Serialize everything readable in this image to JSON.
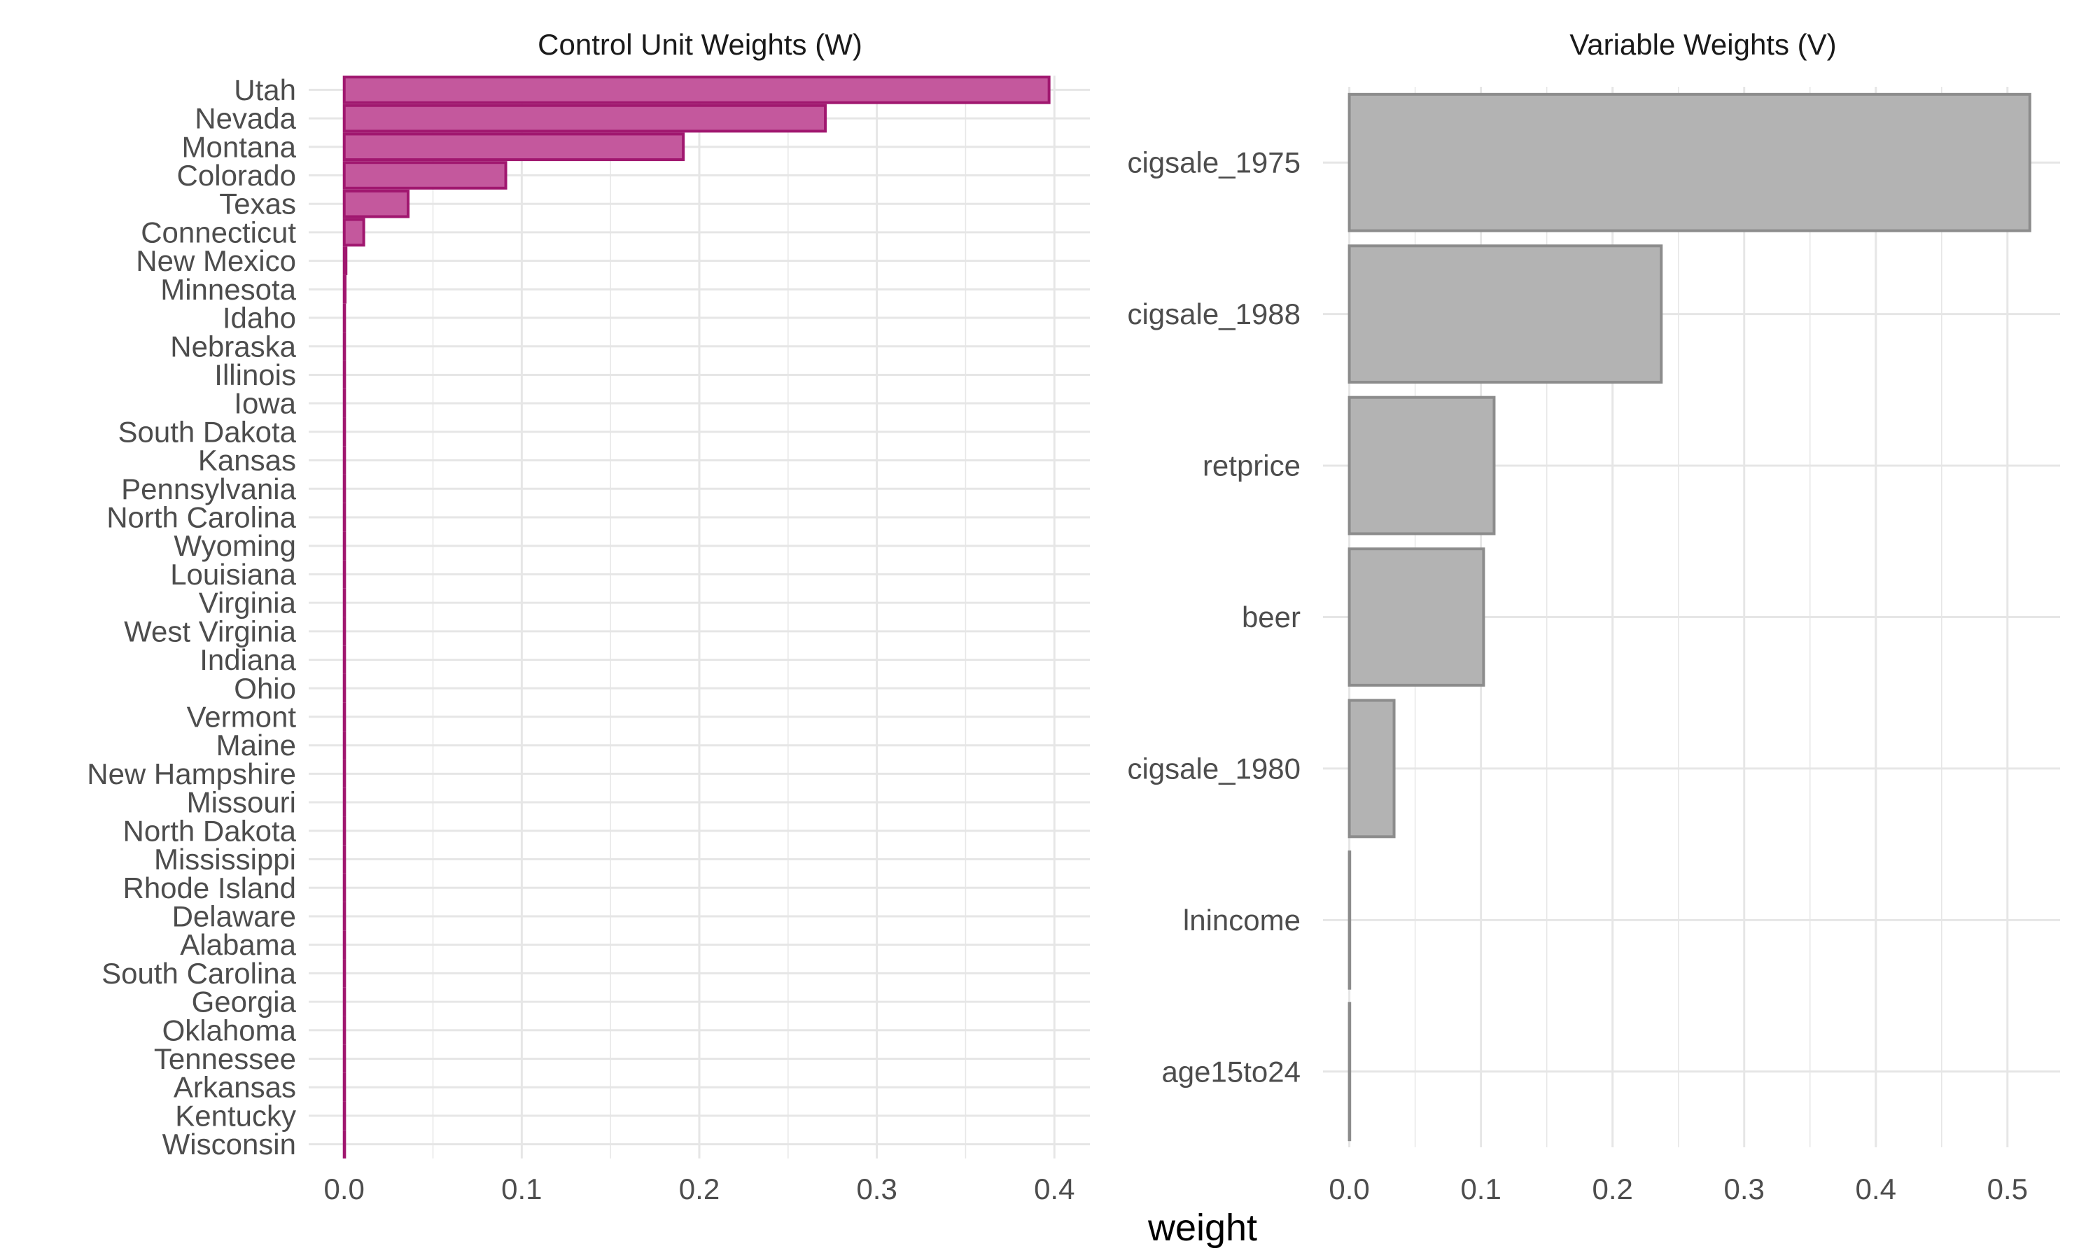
{
  "axis_title_x": "weight",
  "colors": {
    "w_fill": "#c4589d",
    "w_stroke": "#a0176f",
    "v_fill": "#b3b3b3",
    "v_stroke": "#8c8c8c",
    "grid": "#e6e6e6"
  },
  "chart_data": [
    {
      "type": "bar",
      "orientation": "horizontal",
      "title": "Control Unit Weights (W)",
      "xlabel": "weight",
      "xlim": [
        -0.02,
        0.42
      ],
      "xticks": [
        0.0,
        0.1,
        0.2,
        0.3,
        0.4
      ],
      "xtick_labels": [
        "0.0",
        "0.1",
        "0.2",
        "0.3",
        "0.4"
      ],
      "grid": true,
      "categories": [
        "Utah",
        "Nevada",
        "Montana",
        "Colorado",
        "Texas",
        "Connecticut",
        "New Mexico",
        "Minnesota",
        "Idaho",
        "Nebraska",
        "Illinois",
        "Iowa",
        "South Dakota",
        "Kansas",
        "Pennsylvania",
        "North Carolina",
        "Wyoming",
        "Louisiana",
        "Virginia",
        "West Virginia",
        "Indiana",
        "Ohio",
        "Vermont",
        "Maine",
        "New Hampshire",
        "Missouri",
        "North Dakota",
        "Mississippi",
        "Rhode Island",
        "Delaware",
        "Alabama",
        "South Carolina",
        "Georgia",
        "Oklahoma",
        "Tennessee",
        "Arkansas",
        "Kentucky",
        "Wisconsin"
      ],
      "values": [
        0.397,
        0.271,
        0.191,
        0.091,
        0.036,
        0.011,
        0.001,
        0.0005,
        0.0002,
        0.0002,
        0.0001,
        0.0001,
        0.0001,
        0.0001,
        0.0001,
        0.0001,
        0.0001,
        0.0001,
        0.0001,
        0.0001,
        0.0001,
        0.0001,
        0.0001,
        0.0001,
        0.0001,
        0.0001,
        0.0001,
        0.0001,
        0.0001,
        0.0001,
        0.0001,
        0.0001,
        0.0001,
        0.0001,
        0.0001,
        0.0001,
        0.0001,
        0.0001
      ]
    },
    {
      "type": "bar",
      "orientation": "horizontal",
      "title": "Variable Weights (V)",
      "xlabel": "weight",
      "xlim": [
        -0.02,
        0.54
      ],
      "xticks": [
        0.0,
        0.1,
        0.2,
        0.3,
        0.4,
        0.5
      ],
      "xtick_labels": [
        "0.0",
        "0.1",
        "0.2",
        "0.3",
        "0.4",
        "0.5"
      ],
      "grid": true,
      "categories": [
        "cigsale_1975",
        "cigsale_1988",
        "retprice",
        "beer",
        "cigsale_1980",
        "lnincome",
        "age15to24"
      ],
      "values": [
        0.517,
        0.237,
        0.11,
        0.102,
        0.034,
        0.0003,
        0.0002
      ]
    }
  ]
}
